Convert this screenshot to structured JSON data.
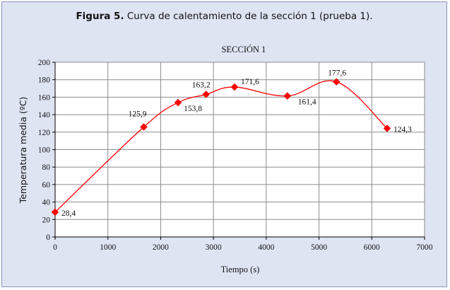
{
  "figure": {
    "caption_label": "Figura 5.",
    "caption_text": "Curva de calentamiento de la sección 1 (prueba 1)."
  },
  "chart_data": {
    "type": "line",
    "title": "SECCIÓN 1",
    "xlabel": "Tiempo (s)",
    "ylabel": "Temperatura media (ºC)",
    "xlim": [
      0,
      7000
    ],
    "ylim": [
      0,
      200
    ],
    "x_ticks": [
      0,
      1000,
      2000,
      3000,
      4000,
      5000,
      6000,
      7000
    ],
    "y_ticks": [
      0,
      20,
      40,
      60,
      80,
      100,
      120,
      140,
      160,
      180,
      200
    ],
    "grid": true,
    "legend": "none",
    "line_color": "#ff0000",
    "marker_color": "#ff0000",
    "plot_background": "#ffffff",
    "series": [
      {
        "x": [
          0,
          1680,
          2330,
          2860,
          3400,
          4400,
          5330,
          6290
        ],
        "y": [
          28.4,
          125.9,
          153.8,
          163.2,
          171.6,
          161.4,
          177.6,
          124.3
        ],
        "labels": [
          "28,4",
          "125,9",
          "153,8",
          "163,2",
          "171,6",
          "161,4",
          "177,6",
          "124,3"
        ]
      }
    ]
  }
}
